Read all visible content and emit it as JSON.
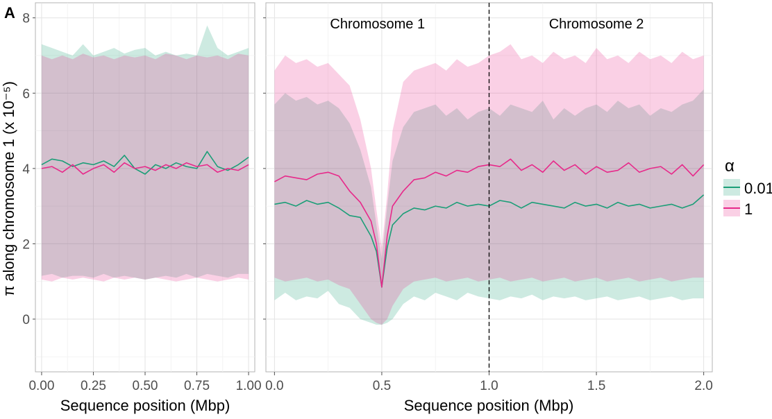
{
  "chart_data": [
    {
      "panel": "A",
      "type": "area",
      "xlabel": "Sequence position (Mbp)",
      "ylabel": "π along chromosome 1 (x 10⁻⁵)",
      "xlim": [
        -0.03,
        1.03
      ],
      "ylim": [
        -1.4,
        8.4
      ],
      "xticks": [
        0.0,
        0.25,
        0.5,
        0.75,
        1.0
      ],
      "xtick_labels": [
        "0.00",
        "0.25",
        "0.50",
        "0.75",
        "1.00"
      ],
      "yticks": [
        0,
        2,
        4,
        6,
        8
      ],
      "ytick_labels": [
        "0",
        "2",
        "4",
        "6",
        "8"
      ],
      "x": [
        0.0,
        0.05,
        0.1,
        0.15,
        0.2,
        0.25,
        0.3,
        0.35,
        0.4,
        0.45,
        0.5,
        0.55,
        0.6,
        0.65,
        0.7,
        0.75,
        0.8,
        0.85,
        0.9,
        0.95,
        1.0
      ],
      "series": [
        {
          "name": "0.01",
          "color": "#1b9e77",
          "mean": [
            4.1,
            4.25,
            4.2,
            4.05,
            4.15,
            4.1,
            4.2,
            4.05,
            4.35,
            4.0,
            3.85,
            4.1,
            4.0,
            4.15,
            4.05,
            4.0,
            4.45,
            4.05,
            3.95,
            4.1,
            4.3
          ],
          "lower": [
            1.15,
            1.2,
            1.1,
            1.15,
            1.15,
            1.1,
            1.2,
            1.1,
            1.15,
            1.1,
            1.05,
            1.1,
            1.15,
            1.1,
            1.2,
            1.1,
            1.2,
            1.15,
            1.1,
            1.2,
            1.2
          ],
          "upper": [
            7.3,
            7.2,
            7.1,
            7.0,
            7.3,
            7.0,
            7.1,
            7.2,
            7.05,
            7.15,
            7.2,
            7.0,
            7.1,
            7.0,
            7.05,
            7.0,
            7.8,
            7.2,
            7.0,
            7.1,
            7.2
          ]
        },
        {
          "name": "1",
          "color": "#e7298a",
          "mean": [
            4.0,
            4.05,
            3.9,
            4.1,
            3.85,
            4.0,
            4.1,
            3.9,
            4.15,
            4.0,
            4.05,
            3.95,
            4.1,
            4.0,
            4.15,
            4.05,
            4.1,
            3.9,
            4.0,
            3.95,
            4.1
          ],
          "lower": [
            1.05,
            1.0,
            1.1,
            1.05,
            1.1,
            1.05,
            1.0,
            1.1,
            1.05,
            1.1,
            1.05,
            1.1,
            1.05,
            1.0,
            1.05,
            1.1,
            1.05,
            1.0,
            1.05,
            1.1,
            1.05
          ],
          "upper": [
            7.0,
            6.9,
            7.0,
            6.9,
            7.05,
            6.95,
            7.0,
            6.9,
            7.0,
            6.95,
            7.0,
            6.9,
            7.05,
            7.0,
            6.9,
            7.0,
            6.95,
            7.0,
            6.9,
            7.05,
            7.0
          ]
        }
      ]
    },
    {
      "panel": "B",
      "type": "area",
      "xlabel": "Sequence position (Mbp)",
      "ylabel": "",
      "xlim": [
        -0.04,
        2.04
      ],
      "ylim": [
        -1.4,
        8.4
      ],
      "xticks": [
        0.0,
        0.5,
        1.0,
        1.5,
        2.0
      ],
      "xtick_labels": [
        "0.0",
        "0.5",
        "1.0",
        "1.5",
        "2.0"
      ],
      "yticks": [
        0,
        2,
        4,
        6,
        8
      ],
      "vline": 1.0,
      "annotations": [
        {
          "text": "Chromosome 1",
          "x": 0.48,
          "y": 7.85
        },
        {
          "text": "Chromosome 2",
          "x": 1.5,
          "y": 7.85
        }
      ],
      "x": [
        0.0,
        0.05,
        0.1,
        0.15,
        0.2,
        0.25,
        0.3,
        0.35,
        0.4,
        0.45,
        0.475,
        0.5,
        0.525,
        0.55,
        0.6,
        0.65,
        0.7,
        0.75,
        0.8,
        0.85,
        0.9,
        0.95,
        1.0,
        1.05,
        1.1,
        1.15,
        1.2,
        1.25,
        1.3,
        1.35,
        1.4,
        1.45,
        1.5,
        1.55,
        1.6,
        1.65,
        1.7,
        1.75,
        1.8,
        1.85,
        1.9,
        1.95,
        2.0
      ],
      "series": [
        {
          "name": "0.01",
          "color": "#1b9e77",
          "mean": [
            3.05,
            3.1,
            3.0,
            3.15,
            3.05,
            3.1,
            2.95,
            2.75,
            2.7,
            2.2,
            1.8,
            0.85,
            1.9,
            2.5,
            2.8,
            2.95,
            2.9,
            3.0,
            2.95,
            3.1,
            3.0,
            3.05,
            3.0,
            3.15,
            3.1,
            2.95,
            3.1,
            3.05,
            3.0,
            2.95,
            3.1,
            3.0,
            3.05,
            2.95,
            3.1,
            3.0,
            3.05,
            2.95,
            3.0,
            3.05,
            2.95,
            3.05,
            3.3
          ],
          "lower": [
            0.5,
            0.7,
            0.5,
            0.6,
            0.55,
            0.75,
            0.4,
            0.3,
            0.0,
            -0.1,
            -0.15,
            -0.15,
            -0.1,
            0.0,
            0.4,
            0.6,
            0.5,
            0.7,
            0.6,
            0.5,
            0.7,
            0.6,
            0.55,
            0.5,
            0.6,
            0.55,
            0.65,
            0.5,
            0.6,
            0.55,
            0.6,
            0.5,
            0.55,
            0.6,
            0.5,
            0.55,
            0.6,
            0.5,
            0.55,
            0.6,
            0.5,
            0.55,
            0.55
          ],
          "upper": [
            5.7,
            6.0,
            5.8,
            5.9,
            5.7,
            5.8,
            5.6,
            5.2,
            4.5,
            3.5,
            2.5,
            1.6,
            3.0,
            4.2,
            5.1,
            5.5,
            5.6,
            5.7,
            5.4,
            5.6,
            5.3,
            5.5,
            5.6,
            5.4,
            5.7,
            5.6,
            5.5,
            5.8,
            5.3,
            5.6,
            5.4,
            5.6,
            5.7,
            5.5,
            5.8,
            5.6,
            5.7,
            5.4,
            5.6,
            5.5,
            5.7,
            5.8,
            6.1
          ]
        },
        {
          "name": "1",
          "color": "#e7298a",
          "mean": [
            3.65,
            3.8,
            3.75,
            3.7,
            3.85,
            3.9,
            3.8,
            3.4,
            3.1,
            2.6,
            2.0,
            0.85,
            2.2,
            3.0,
            3.4,
            3.7,
            3.75,
            3.9,
            3.8,
            3.95,
            3.9,
            4.05,
            4.1,
            4.05,
            4.25,
            3.95,
            4.1,
            3.9,
            4.2,
            3.95,
            4.1,
            3.85,
            4.05,
            3.9,
            3.95,
            4.15,
            3.9,
            4.0,
            4.05,
            3.85,
            4.1,
            3.8,
            4.1
          ],
          "lower": [
            1.1,
            1.0,
            1.05,
            1.1,
            1.0,
            1.05,
            0.9,
            0.8,
            0.4,
            0.0,
            -0.1,
            -0.15,
            0.0,
            0.35,
            0.8,
            1.0,
            1.05,
            1.1,
            1.0,
            1.05,
            1.1,
            1.0,
            1.05,
            1.1,
            1.0,
            1.05,
            1.1,
            1.0,
            1.05,
            1.1,
            1.0,
            1.05,
            1.1,
            1.0,
            1.05,
            1.1,
            1.0,
            1.05,
            1.1,
            1.0,
            1.05,
            1.1,
            1.1
          ],
          "upper": [
            6.6,
            7.0,
            6.8,
            6.9,
            6.7,
            6.8,
            6.5,
            6.2,
            5.3,
            4.0,
            2.9,
            1.9,
            3.3,
            5.0,
            6.3,
            6.6,
            6.7,
            6.8,
            6.6,
            6.9,
            6.7,
            6.8,
            7.0,
            7.1,
            7.3,
            6.9,
            7.0,
            6.8,
            7.1,
            6.9,
            7.0,
            6.8,
            7.2,
            6.9,
            7.0,
            6.8,
            7.1,
            6.9,
            7.0,
            6.8,
            7.1,
            6.9,
            7.0
          ]
        }
      ]
    }
  ],
  "legend": {
    "title": "α",
    "items": [
      {
        "label": "0.01",
        "color": "#1b9e77"
      },
      {
        "label": "1",
        "color": "#e7298a"
      }
    ]
  }
}
